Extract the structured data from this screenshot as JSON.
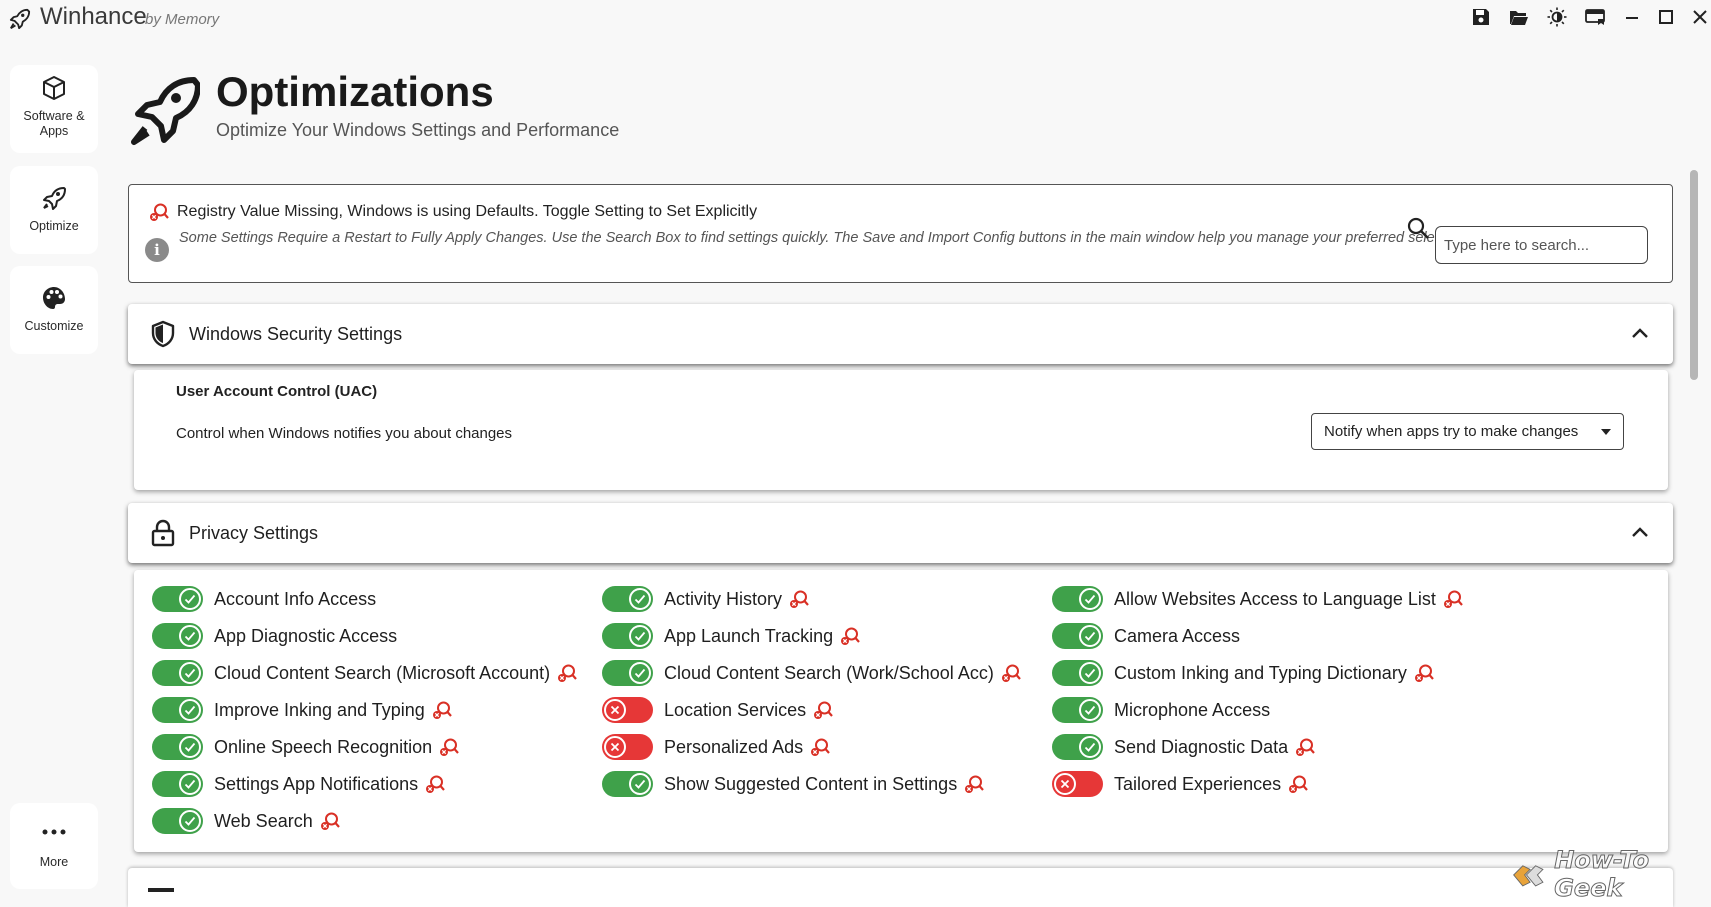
{
  "app": {
    "name": "Winhance",
    "by": "by Memory"
  },
  "titlebar": {
    "buttons": [
      {
        "icon": "save-icon"
      },
      {
        "icon": "folder-open-icon"
      },
      {
        "icon": "theme-toggle-icon"
      },
      {
        "icon": "update-icon"
      },
      {
        "icon": "minimize-icon"
      },
      {
        "icon": "maximize-icon"
      },
      {
        "icon": "close-icon"
      }
    ]
  },
  "nav": {
    "software": "Software &\nApps",
    "optimize": "Optimize",
    "customize": "Customize",
    "more": "More"
  },
  "header": {
    "title": "Optimizations",
    "subtitle": "Optimize Your Windows Settings and Performance"
  },
  "notice": {
    "registry": "Registry Value Missing, Windows is using Defaults. Toggle Setting to Set Explicitly",
    "info_text": "Some Settings Require a Restart to Fully Apply Changes. Use the Search Box to find settings quickly. The Save and Import Config buttons in the main window help you manage your preferred selections.",
    "info_glyph": "i",
    "search_placeholder": "Type here to search..."
  },
  "security": {
    "title": "Windows Security Settings",
    "uac_title": "User Account Control (UAC)",
    "uac_desc": "Control when Windows notifies you about changes",
    "uac_value": "Notify when apps try to make changes"
  },
  "privacy": {
    "title": "Privacy Settings",
    "columns": [
      [
        {
          "label": "Account Info Access",
          "on": true,
          "reg": false
        },
        {
          "label": "App Diagnostic Access",
          "on": true,
          "reg": false
        },
        {
          "label": "Cloud Content Search (Microsoft Account)",
          "on": true,
          "reg": true
        },
        {
          "label": "Improve Inking and Typing",
          "on": true,
          "reg": true
        },
        {
          "label": "Online Speech Recognition",
          "on": true,
          "reg": true
        },
        {
          "label": "Settings App Notifications",
          "on": true,
          "reg": true
        },
        {
          "label": "Web Search",
          "on": true,
          "reg": true
        }
      ],
      [
        {
          "label": "Activity History",
          "on": true,
          "reg": true
        },
        {
          "label": "App Launch Tracking",
          "on": true,
          "reg": true
        },
        {
          "label": "Cloud Content Search (Work/School Acc)",
          "on": true,
          "reg": true
        },
        {
          "label": "Location Services",
          "on": false,
          "reg": true
        },
        {
          "label": "Personalized Ads",
          "on": false,
          "reg": true
        },
        {
          "label": "Show Suggested Content in Settings",
          "on": true,
          "reg": true
        }
      ],
      [
        {
          "label": "Allow Websites Access to Language List",
          "on": true,
          "reg": true
        },
        {
          "label": "Camera Access",
          "on": true,
          "reg": false
        },
        {
          "label": "Custom Inking and Typing Dictionary",
          "on": true,
          "reg": true
        },
        {
          "label": "Microphone Access",
          "on": true,
          "reg": false
        },
        {
          "label": "Send Diagnostic Data",
          "on": true,
          "reg": true
        },
        {
          "label": "Tailored Experiences",
          "on": false,
          "reg": true
        }
      ]
    ]
  },
  "watermark": "How-To Geek",
  "colors": {
    "on": "#3fa14a",
    "off": "#e63737",
    "registry": "#d93025"
  }
}
